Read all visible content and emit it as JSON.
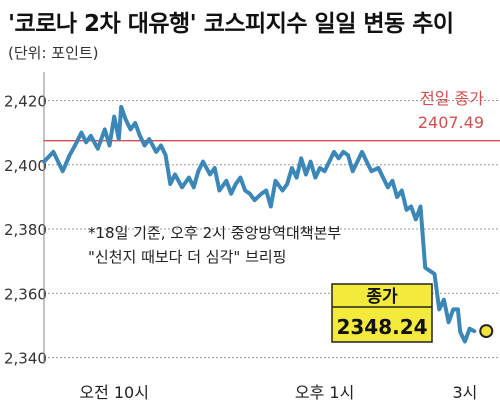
{
  "chart_data": {
    "type": "line",
    "title": "'코로나 2차 대유행' 코스피지수 일일 변동 추이",
    "unit": "(단위: 포인트)",
    "yticks": [
      2340,
      2360,
      2380,
      2400,
      2420
    ],
    "ylim": [
      2338,
      2427
    ],
    "xticks": [
      {
        "label": "오전 10시",
        "t": 60
      },
      {
        "label": "오후 1시",
        "t": 240
      },
      {
        "label": "3시",
        "t": 360
      }
    ],
    "xlim": [
      0,
      390
    ],
    "reference": {
      "label": "전일 종가",
      "value": 2407.49,
      "value_label": "2407.49"
    },
    "annotation": {
      "line1": "*18일 기준, 오후 2시 중앙방역대책본부",
      "line2": "\"신천지 때보다 더 심각\" 브리핑"
    },
    "close": {
      "label": "종가",
      "value": 2348.24,
      "value_label": "2348.24"
    },
    "series": [
      {
        "t": [
          0,
          8,
          16,
          22,
          28,
          32,
          36,
          40,
          46,
          52,
          56,
          60,
          64,
          66,
          70,
          74,
          78,
          82,
          86,
          90,
          96,
          100,
          104,
          108,
          112,
          118,
          124,
          128,
          132,
          136,
          142,
          146,
          150,
          156,
          160,
          164,
          168,
          172,
          176,
          180,
          186,
          190,
          194,
          198,
          204,
          208,
          212,
          216,
          220,
          224,
          228,
          232,
          236,
          240,
          244,
          248,
          252,
          256,
          260,
          264,
          268,
          272,
          276,
          280,
          286,
          290,
          294,
          298,
          302,
          306,
          310,
          314,
          318,
          322,
          326,
          330,
          334,
          338,
          342,
          346,
          350,
          354,
          356,
          360,
          364,
          368
        ],
        "values": [
          2401,
          2404,
          2398,
          2403,
          2407,
          2410,
          2407,
          2409,
          2405,
          2411,
          2406,
          2415,
          2408,
          2418,
          2414,
          2411,
          2413,
          2409,
          2406,
          2408,
          2404,
          2406,
          2403,
          2394,
          2397,
          2393,
          2396,
          2393,
          2398,
          2401,
          2397,
          2399,
          2392,
          2395,
          2391,
          2394,
          2396,
          2392,
          2391,
          2389,
          2391,
          2392,
          2387,
          2395,
          2392,
          2394,
          2399,
          2396,
          2402,
          2397,
          2401,
          2396,
          2399,
          2398,
          2401,
          2404,
          2402,
          2404,
          2403,
          2398,
          2401,
          2404,
          2401,
          2398,
          2399,
          2396,
          2393,
          2395,
          2390,
          2392,
          2386,
          2387,
          2383,
          2387,
          2368,
          2367,
          2366,
          2355,
          2358,
          2351,
          2355,
          2355,
          2348,
          2345,
          2349,
          2348.24
        ]
      }
    ]
  }
}
